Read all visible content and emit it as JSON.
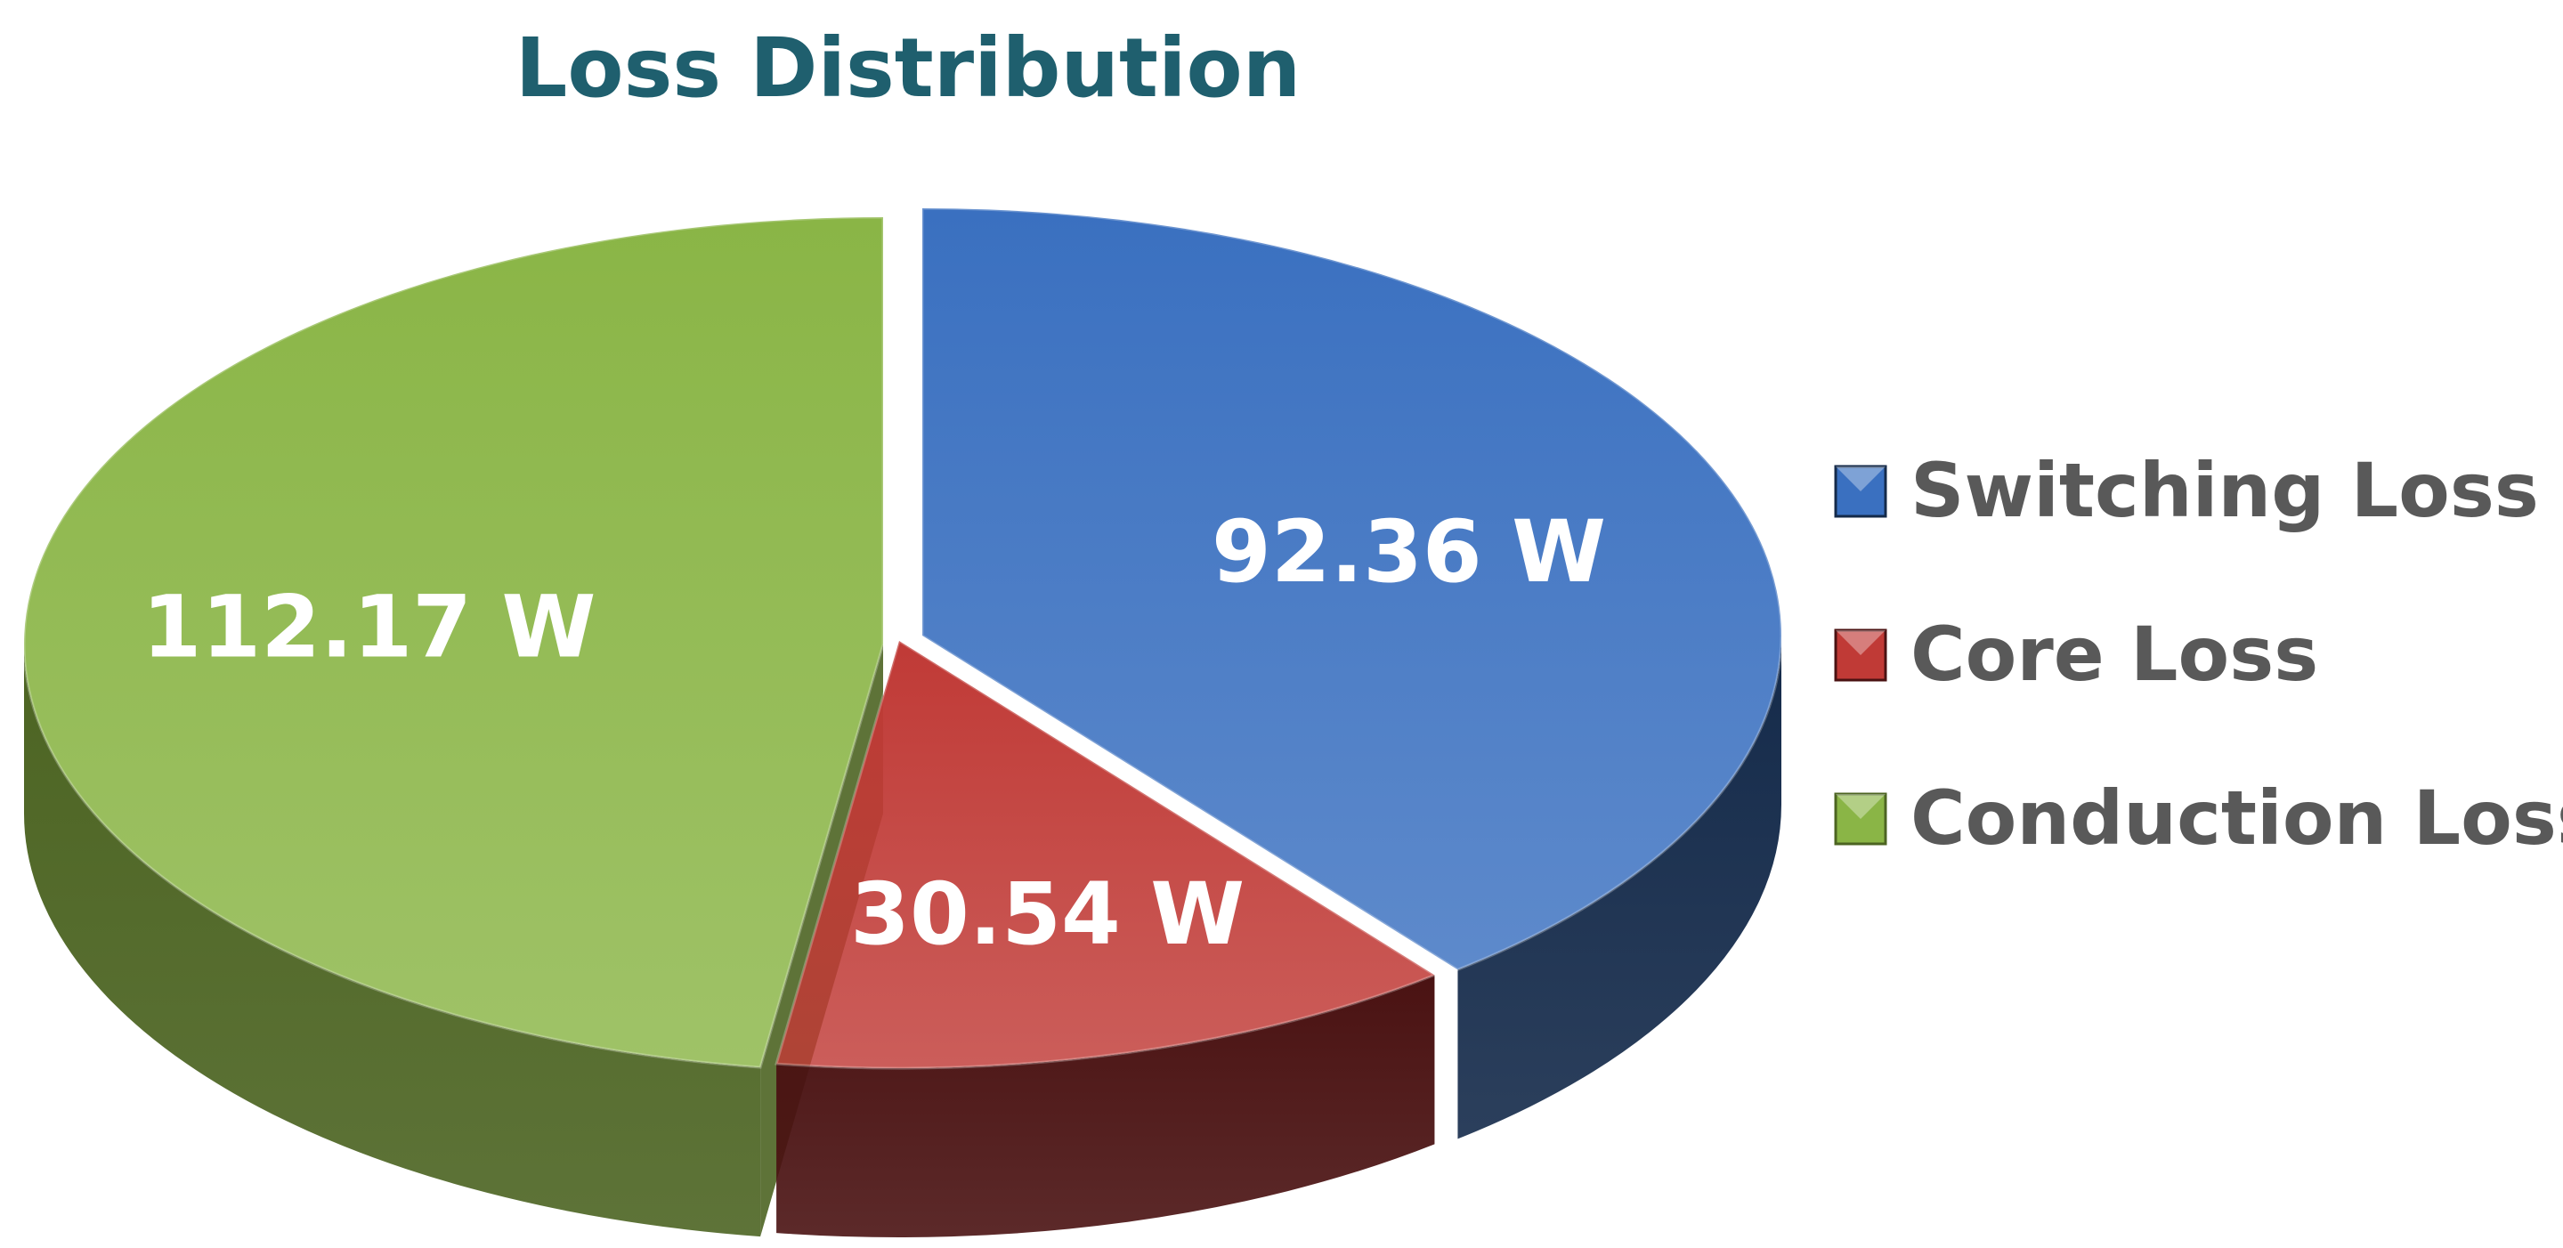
{
  "chart_data": {
    "type": "pie",
    "title": "Loss Distribution",
    "unit": "W",
    "legend_position": "right",
    "series": [
      {
        "name": "Switching Loss",
        "value": 92.36,
        "label": "92.36 W",
        "color": "#3a70c0",
        "dark_color": "#142a4a"
      },
      {
        "name": "Core Loss",
        "value": 30.54,
        "label": "30.54 W",
        "color": "#c03a36",
        "dark_color": "#4a1212"
      },
      {
        "name": "Conduction Loss",
        "value": 112.17,
        "label": "112.17 W",
        "color": "#8ab546",
        "dark_color": "#4c6422"
      }
    ]
  }
}
